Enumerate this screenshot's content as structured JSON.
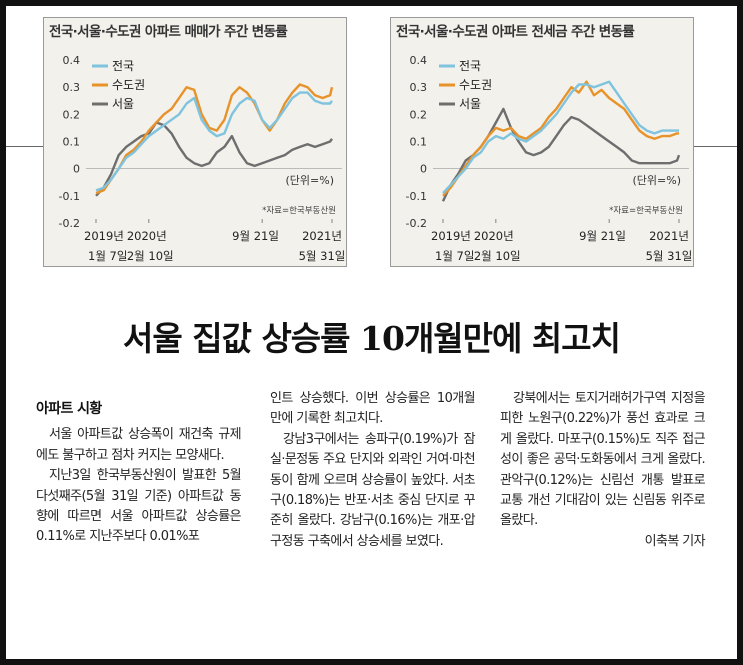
{
  "charts": [
    {
      "id": "chart1",
      "title": "전국·서울·수도권 아파트 매매가 주간 변동률",
      "legend": [
        "전국",
        "수도권",
        "서울"
      ],
      "unit": "(단위=%)",
      "source": "*자료=한국부동산원",
      "yticks": [
        "0.4",
        "0.3",
        "0.2",
        "0.1",
        "0",
        "-0.1",
        "-0.2"
      ],
      "xticks_top": [
        "2019년",
        "2020년",
        "9월 21일",
        "2021년"
      ],
      "xticks_bottom": [
        "1월 7일",
        "2월 10일",
        "5월 31일"
      ],
      "colors": {
        "전국": "#7fc3de",
        "수도권": "#e8922a",
        "서울": "#6e6e6e"
      }
    },
    {
      "id": "chart2",
      "title": "전국·서울·수도권 아파트 전세금 주간 변동률",
      "legend": [
        "전국",
        "수도권",
        "서울"
      ],
      "unit": "(단위=%)",
      "source": "*자료=한국부동산원",
      "yticks": [
        "0.4",
        "0.3",
        "0.2",
        "0.1",
        "0",
        "-0.1",
        "-0.2"
      ],
      "xticks_top": [
        "2019년",
        "2020년",
        "9월 21일",
        "2021년"
      ],
      "xticks_bottom": [
        "1월 7일",
        "2월 10일",
        "5월 31일"
      ],
      "colors": {
        "전국": "#7fc3de",
        "수도권": "#e8922a",
        "서울": "#6e6e6e"
      }
    }
  ],
  "chart_data": [
    {
      "type": "line",
      "title": "전국·서울·수도권 아파트 매매가 주간 변동률",
      "ylabel": "(단위=%)",
      "ylim": [
        -0.2,
        0.4
      ],
      "x_range": [
        "2019-01-07",
        "2021-05-31"
      ],
      "series": [
        {
          "name": "전국",
          "x": [
            0,
            4,
            8,
            12,
            16,
            20,
            24,
            28,
            32,
            36,
            40,
            44,
            48,
            52,
            56,
            60,
            64,
            68,
            72,
            76,
            80,
            84,
            88,
            92,
            96,
            100,
            104,
            108,
            112,
            116,
            120,
            124,
            125
          ],
          "values": [
            -0.08,
            -0.07,
            -0.04,
            0.0,
            0.04,
            0.06,
            0.09,
            0.12,
            0.14,
            0.16,
            0.18,
            0.2,
            0.24,
            0.26,
            0.18,
            0.14,
            0.12,
            0.13,
            0.2,
            0.24,
            0.26,
            0.25,
            0.18,
            0.15,
            0.18,
            0.22,
            0.26,
            0.28,
            0.28,
            0.25,
            0.24,
            0.24,
            0.25
          ]
        },
        {
          "name": "수도권",
          "x": [
            0,
            4,
            8,
            12,
            16,
            20,
            24,
            28,
            32,
            36,
            40,
            44,
            48,
            52,
            56,
            60,
            64,
            68,
            72,
            76,
            80,
            84,
            88,
            92,
            96,
            100,
            104,
            108,
            112,
            116,
            120,
            124,
            125
          ],
          "values": [
            -0.09,
            -0.08,
            -0.04,
            0.0,
            0.05,
            0.07,
            0.1,
            0.14,
            0.17,
            0.2,
            0.22,
            0.26,
            0.3,
            0.29,
            0.2,
            0.15,
            0.14,
            0.18,
            0.27,
            0.3,
            0.28,
            0.24,
            0.18,
            0.14,
            0.18,
            0.24,
            0.28,
            0.31,
            0.3,
            0.27,
            0.26,
            0.27,
            0.3
          ]
        },
        {
          "name": "서울",
          "x": [
            0,
            4,
            8,
            12,
            16,
            20,
            24,
            28,
            32,
            36,
            40,
            44,
            48,
            52,
            56,
            60,
            64,
            68,
            72,
            76,
            80,
            84,
            88,
            92,
            96,
            100,
            104,
            108,
            112,
            116,
            120,
            124,
            125
          ],
          "values": [
            -0.1,
            -0.07,
            -0.02,
            0.05,
            0.08,
            0.1,
            0.12,
            0.13,
            0.17,
            0.16,
            0.13,
            0.08,
            0.04,
            0.02,
            0.01,
            0.02,
            0.06,
            0.08,
            0.12,
            0.06,
            0.02,
            0.01,
            0.02,
            0.03,
            0.04,
            0.05,
            0.07,
            0.08,
            0.09,
            0.08,
            0.09,
            0.1,
            0.11
          ]
        }
      ]
    },
    {
      "type": "line",
      "title": "전국·서울·수도권 아파트 전세금 주간 변동률",
      "ylabel": "(단위=%)",
      "ylim": [
        -0.2,
        0.4
      ],
      "x_range": [
        "2019-01-07",
        "2021-05-31"
      ],
      "series": [
        {
          "name": "전국",
          "x": [
            0,
            4,
            8,
            12,
            16,
            20,
            24,
            28,
            32,
            36,
            40,
            44,
            48,
            52,
            56,
            60,
            64,
            68,
            72,
            76,
            80,
            84,
            88,
            92,
            96,
            100,
            104,
            108,
            112,
            116,
            120,
            124,
            125
          ],
          "values": [
            -0.09,
            -0.06,
            -0.03,
            0.0,
            0.04,
            0.06,
            0.1,
            0.12,
            0.11,
            0.13,
            0.11,
            0.1,
            0.12,
            0.14,
            0.17,
            0.2,
            0.24,
            0.28,
            0.31,
            0.31,
            0.3,
            0.31,
            0.32,
            0.28,
            0.24,
            0.2,
            0.16,
            0.14,
            0.13,
            0.14,
            0.14,
            0.14,
            0.14
          ]
        },
        {
          "name": "수도권",
          "x": [
            0,
            4,
            8,
            12,
            16,
            20,
            24,
            28,
            32,
            36,
            40,
            44,
            48,
            52,
            56,
            60,
            64,
            68,
            72,
            76,
            80,
            84,
            88,
            92,
            96,
            100,
            104,
            108,
            112,
            116,
            120,
            124,
            125
          ],
          "values": [
            -0.1,
            -0.07,
            -0.03,
            0.01,
            0.05,
            0.08,
            0.12,
            0.15,
            0.14,
            0.15,
            0.12,
            0.11,
            0.13,
            0.15,
            0.19,
            0.22,
            0.26,
            0.3,
            0.28,
            0.32,
            0.27,
            0.29,
            0.26,
            0.24,
            0.22,
            0.18,
            0.14,
            0.12,
            0.11,
            0.12,
            0.12,
            0.13,
            0.13
          ]
        },
        {
          "name": "서울",
          "x": [
            0,
            4,
            8,
            12,
            16,
            20,
            24,
            28,
            32,
            36,
            40,
            44,
            48,
            52,
            56,
            60,
            64,
            68,
            72,
            76,
            80,
            84,
            88,
            92,
            96,
            100,
            104,
            108,
            112,
            116,
            120,
            124,
            125
          ],
          "values": [
            -0.12,
            -0.06,
            -0.02,
            0.03,
            0.05,
            0.08,
            0.12,
            0.17,
            0.22,
            0.15,
            0.1,
            0.06,
            0.05,
            0.06,
            0.08,
            0.12,
            0.16,
            0.19,
            0.18,
            0.16,
            0.14,
            0.12,
            0.1,
            0.08,
            0.06,
            0.03,
            0.02,
            0.02,
            0.02,
            0.02,
            0.02,
            0.03,
            0.05
          ]
        }
      ]
    }
  ],
  "article": {
    "headline": "서울 집값 상승률 10개월만에 최고치",
    "section": "아파트 시황",
    "col1_p1": "서울 아파트값 상승폭이 재건축 규제에도 불구하고 점차 커지는 모양새다.",
    "col1_p2": "지난3일 한국부동산원이 발표한 5월 다섯째주(5월 31일 기준) 아파트값 동향에 따르면 서울 아파트값 상승률은 0.11%로 지난주보다 0.01%포",
    "col2_p1": "인트 상승했다. 이번 상승률은 10개월 만에 기록한 최고치다.",
    "col2_p2": "강남3구에서는 송파구(0.19%)가 잠실·문정동 주요 단지와 외곽인 거여·마천동이 함께 오르며 상승률이 높았다. 서초구(0.18%)는 반포·서초 중심 단지로 꾸준히 올랐다. 강남구(0.16%)는 개포·압구정동 구축에서 상승세를 보였다.",
    "col3_p1": "강북에서는 토지거래허가구역 지정을 피한 노원구(0.22%)가 풍선 효과로 크게 올랐다. 마포구(0.15%)도 직주 접근성이 좋은 공덕·도화동에서 크게 올랐다. 관악구(0.12%)는 신림선 개통 발표로 교통 개선 기대감이 있는 신림동 위주로 올랐다.",
    "byline": "이축복 기자"
  }
}
